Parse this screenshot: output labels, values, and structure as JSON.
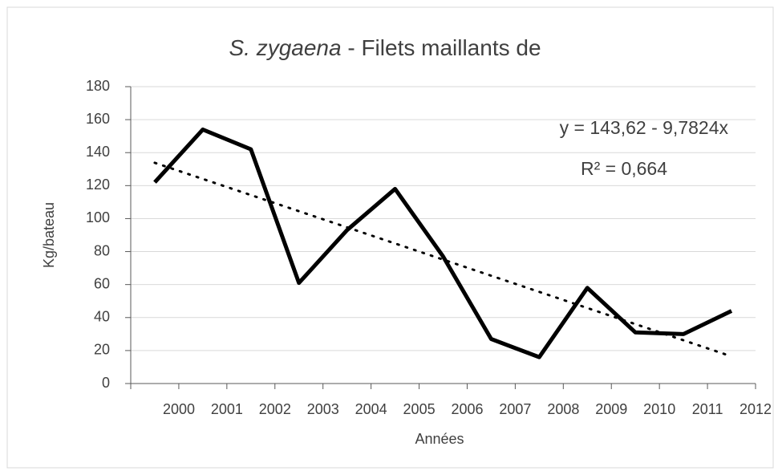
{
  "chart_data": {
    "type": "line",
    "title": {
      "italic": "S. zygaena",
      "rest": " - Filets maillants de"
    },
    "x_label": "Années",
    "y_label": "Kg/bateau",
    "categories": [
      "2000",
      "2001",
      "2002",
      "2003",
      "2004",
      "2005",
      "2006",
      "2007",
      "2008",
      "2009",
      "2010",
      "2011",
      "2012"
    ],
    "series": [
      {
        "color": "#000000",
        "values": [
          122,
          154,
          142,
          61,
          93,
          118,
          77,
          27,
          16,
          58,
          31,
          30,
          44
        ]
      }
    ],
    "trendline": {
      "intercept": 143.62,
      "slope": -9.7824,
      "color": "#000000",
      "equation": "y = 143,62 - 9,7824x",
      "r2": "R² = 0,664"
    },
    "ylim": [
      0,
      180
    ],
    "yticks": [
      0,
      20,
      40,
      60,
      80,
      100,
      120,
      140,
      160,
      180
    ],
    "grid": true
  }
}
